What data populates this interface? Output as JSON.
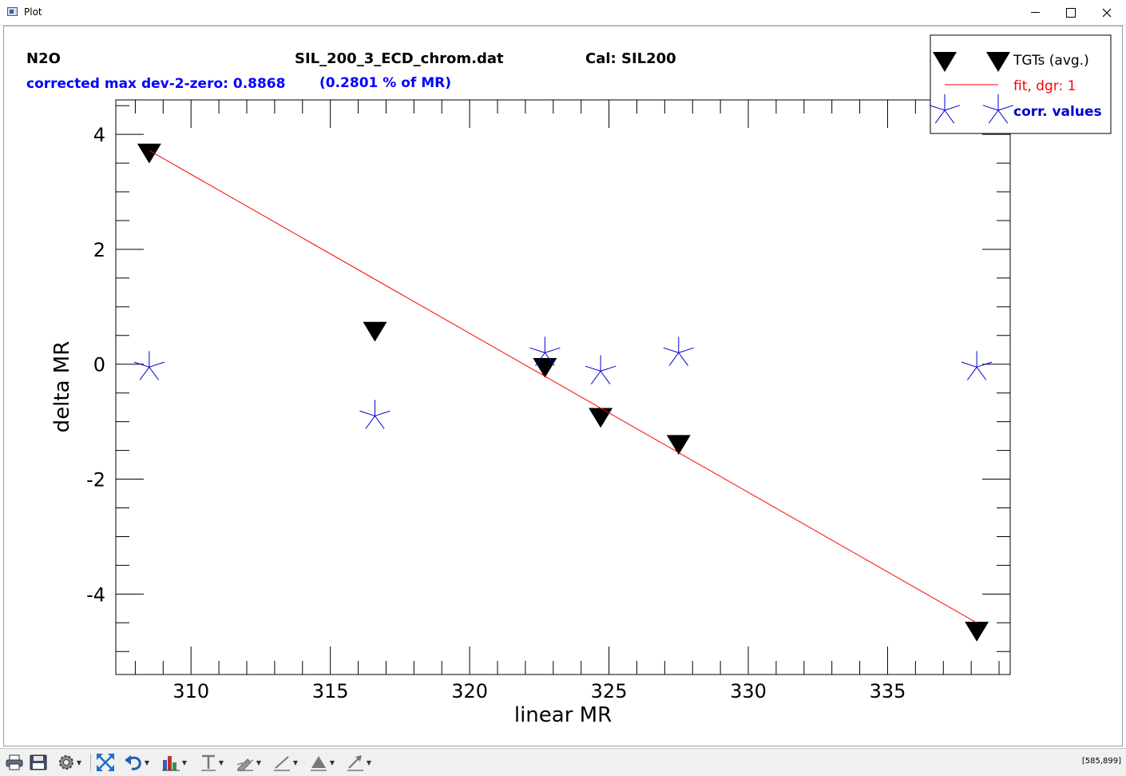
{
  "window": {
    "title": "Plot"
  },
  "header": {
    "species": "N2O",
    "file": "SIL_200_3_ECD_chrom.dat",
    "cal": "Cal: SIL200",
    "dev_text": "corrected max dev-2-zero: 0.8868",
    "pct_text": "(0.2801 % of MR)"
  },
  "legend": {
    "tgts": "TGTs (avg.)",
    "fit": "fit, dgr:  1",
    "corr": "corr. values"
  },
  "colors": {
    "tgt": "#000000",
    "fit": "#ff0000",
    "corr": "#0000cc",
    "header_blue": "#0000ff"
  },
  "chart_data": {
    "type": "scatter",
    "xlabel": "linear MR",
    "ylabel": "delta MR",
    "xlim": [
      307.3,
      339.4
    ],
    "ylim": [
      -5.4,
      4.6
    ],
    "x_ticks": [
      310,
      315,
      320,
      325,
      330,
      335
    ],
    "y_ticks": [
      4,
      2,
      0,
      -2,
      -4
    ],
    "series": [
      {
        "name": "TGTs (avg.)",
        "marker": "triangle-down",
        "points": [
          [
            308.5,
            3.65
          ],
          [
            316.6,
            0.55
          ],
          [
            322.7,
            -0.08
          ],
          [
            324.7,
            -0.95
          ],
          [
            327.5,
            -1.42
          ],
          [
            338.2,
            -4.67
          ]
        ]
      },
      {
        "name": "fit, dgr:  1",
        "style": "line",
        "points": [
          [
            308.5,
            3.72
          ],
          [
            338.2,
            -4.5
          ]
        ]
      },
      {
        "name": "corr. values",
        "marker": "asterisk",
        "points": [
          [
            308.5,
            -0.05
          ],
          [
            316.6,
            -0.9
          ],
          [
            322.7,
            0.2
          ],
          [
            324.7,
            -0.12
          ],
          [
            327.5,
            0.2
          ],
          [
            338.2,
            -0.05
          ]
        ]
      }
    ]
  },
  "toolbar": {
    "status": "[585,899]"
  }
}
